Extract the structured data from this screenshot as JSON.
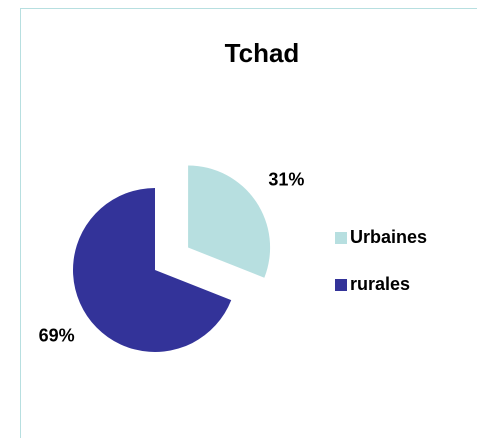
{
  "chart_data": {
    "type": "pie",
    "title": "Tchad",
    "categories": [
      "Urbaines",
      "rurales"
    ],
    "values": [
      31,
      69
    ],
    "value_labels": [
      "31%",
      "69%"
    ],
    "colors": [
      "#b7dfe0",
      "#333399"
    ],
    "legend": "right"
  }
}
